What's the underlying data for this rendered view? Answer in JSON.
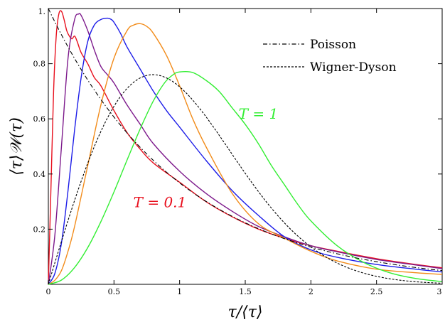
{
  "chart_data": {
    "type": "line",
    "title": "",
    "xlabel": "τ/⟨τ⟩",
    "ylabel": "⟨τ⟩𝒲(τ)",
    "xlim": [
      0,
      3
    ],
    "ylim": [
      0,
      1
    ],
    "x_ticks": [
      0,
      0.5,
      1,
      1.5,
      2,
      2.5,
      3
    ],
    "x_tick_labels": [
      "0",
      "0.5",
      "1",
      "1.5",
      "2",
      "2.5",
      "3"
    ],
    "y_ticks": [
      0.2,
      0.4,
      0.6,
      0.8,
      1
    ],
    "y_tick_labels": [
      "0.2",
      "0.4",
      "0.6",
      "0.8",
      "1."
    ],
    "grid": false,
    "legend_position": "top-right",
    "legend": [
      {
        "label": "Poisson",
        "style": "dash-dot",
        "color": "#000000"
      },
      {
        "label": "Wigner-Dyson",
        "style": "dashed",
        "color": "#000000"
      }
    ],
    "annotations": [
      {
        "text": "T = 1",
        "x": 1.6,
        "y": 0.6,
        "color": "#33ee33"
      },
      {
        "text": "T = 0.1",
        "x": 0.85,
        "y": 0.28,
        "color": "#e8101e"
      }
    ],
    "series": [
      {
        "color": "#e8101e",
        "x": [
          0,
          0.02,
          0.04,
          0.06,
          0.08,
          0.1,
          0.12,
          0.14,
          0.16,
          0.18,
          0.2,
          0.22,
          0.25,
          0.3,
          0.35,
          0.4,
          0.5,
          0.6,
          0.7,
          0.8,
          1.0,
          1.2,
          1.4,
          1.6,
          1.8,
          2.0,
          2.2,
          2.5,
          2.8,
          3.0
        ],
        "y": [
          0,
          0.35,
          0.7,
          0.9,
          0.98,
          0.99,
          0.96,
          0.92,
          0.9,
          0.89,
          0.9,
          0.88,
          0.84,
          0.8,
          0.75,
          0.72,
          0.63,
          0.55,
          0.49,
          0.44,
          0.37,
          0.3,
          0.245,
          0.2,
          0.167,
          0.14,
          0.12,
          0.093,
          0.072,
          0.06
        ]
      },
      {
        "color": "#7d1a8c",
        "x": [
          0,
          0.05,
          0.1,
          0.15,
          0.2,
          0.23,
          0.25,
          0.3,
          0.35,
          0.4,
          0.45,
          0.5,
          0.6,
          0.7,
          0.8,
          1.0,
          1.2,
          1.4,
          1.6,
          1.8,
          2.0,
          2.2,
          2.5,
          2.8,
          3.0
        ],
        "y": [
          0,
          0.18,
          0.5,
          0.82,
          0.96,
          0.98,
          0.975,
          0.92,
          0.85,
          0.79,
          0.76,
          0.73,
          0.65,
          0.58,
          0.51,
          0.41,
          0.33,
          0.265,
          0.21,
          0.172,
          0.14,
          0.118,
          0.09,
          0.07,
          0.057
        ]
      },
      {
        "color": "#1d1de8",
        "x": [
          0,
          0.05,
          0.1,
          0.15,
          0.2,
          0.25,
          0.3,
          0.35,
          0.4,
          0.45,
          0.48,
          0.5,
          0.55,
          0.6,
          0.7,
          0.8,
          0.9,
          1.0,
          1.2,
          1.4,
          1.6,
          1.8,
          2.0,
          2.2,
          2.5,
          2.8,
          3.0
        ],
        "y": [
          0,
          0.04,
          0.15,
          0.34,
          0.56,
          0.75,
          0.88,
          0.94,
          0.96,
          0.965,
          0.96,
          0.95,
          0.91,
          0.86,
          0.78,
          0.7,
          0.63,
          0.57,
          0.45,
          0.34,
          0.25,
          0.172,
          0.125,
          0.098,
          0.072,
          0.055,
          0.045
        ]
      },
      {
        "color": "#f28c1b",
        "x": [
          0,
          0.05,
          0.1,
          0.15,
          0.2,
          0.3,
          0.4,
          0.5,
          0.6,
          0.65,
          0.7,
          0.75,
          0.8,
          0.9,
          1.0,
          1.1,
          1.2,
          1.4,
          1.6,
          1.8,
          2.0,
          2.2,
          2.5,
          2.8,
          3.0
        ],
        "y": [
          0,
          0.015,
          0.05,
          0.12,
          0.21,
          0.43,
          0.65,
          0.82,
          0.92,
          0.94,
          0.945,
          0.935,
          0.91,
          0.83,
          0.72,
          0.6,
          0.5,
          0.33,
          0.22,
          0.167,
          0.12,
          0.085,
          0.055,
          0.042,
          0.036
        ]
      },
      {
        "color": "#33ee33",
        "x": [
          0,
          0.1,
          0.2,
          0.3,
          0.4,
          0.5,
          0.6,
          0.7,
          0.8,
          0.886,
          0.95,
          1.0,
          1.1,
          1.2,
          1.3,
          1.4,
          1.5,
          1.6,
          1.7,
          1.8,
          1.9,
          2.0,
          2.2,
          2.4,
          2.6,
          2.8,
          3.0
        ],
        "y": [
          0,
          0.0155,
          0.061,
          0.133,
          0.227,
          0.335,
          0.451,
          0.564,
          0.665,
          0.731,
          0.76,
          0.77,
          0.768,
          0.74,
          0.7,
          0.64,
          0.58,
          0.51,
          0.43,
          0.36,
          0.29,
          0.23,
          0.14,
          0.08,
          0.042,
          0.021,
          0.01
        ]
      }
    ]
  }
}
